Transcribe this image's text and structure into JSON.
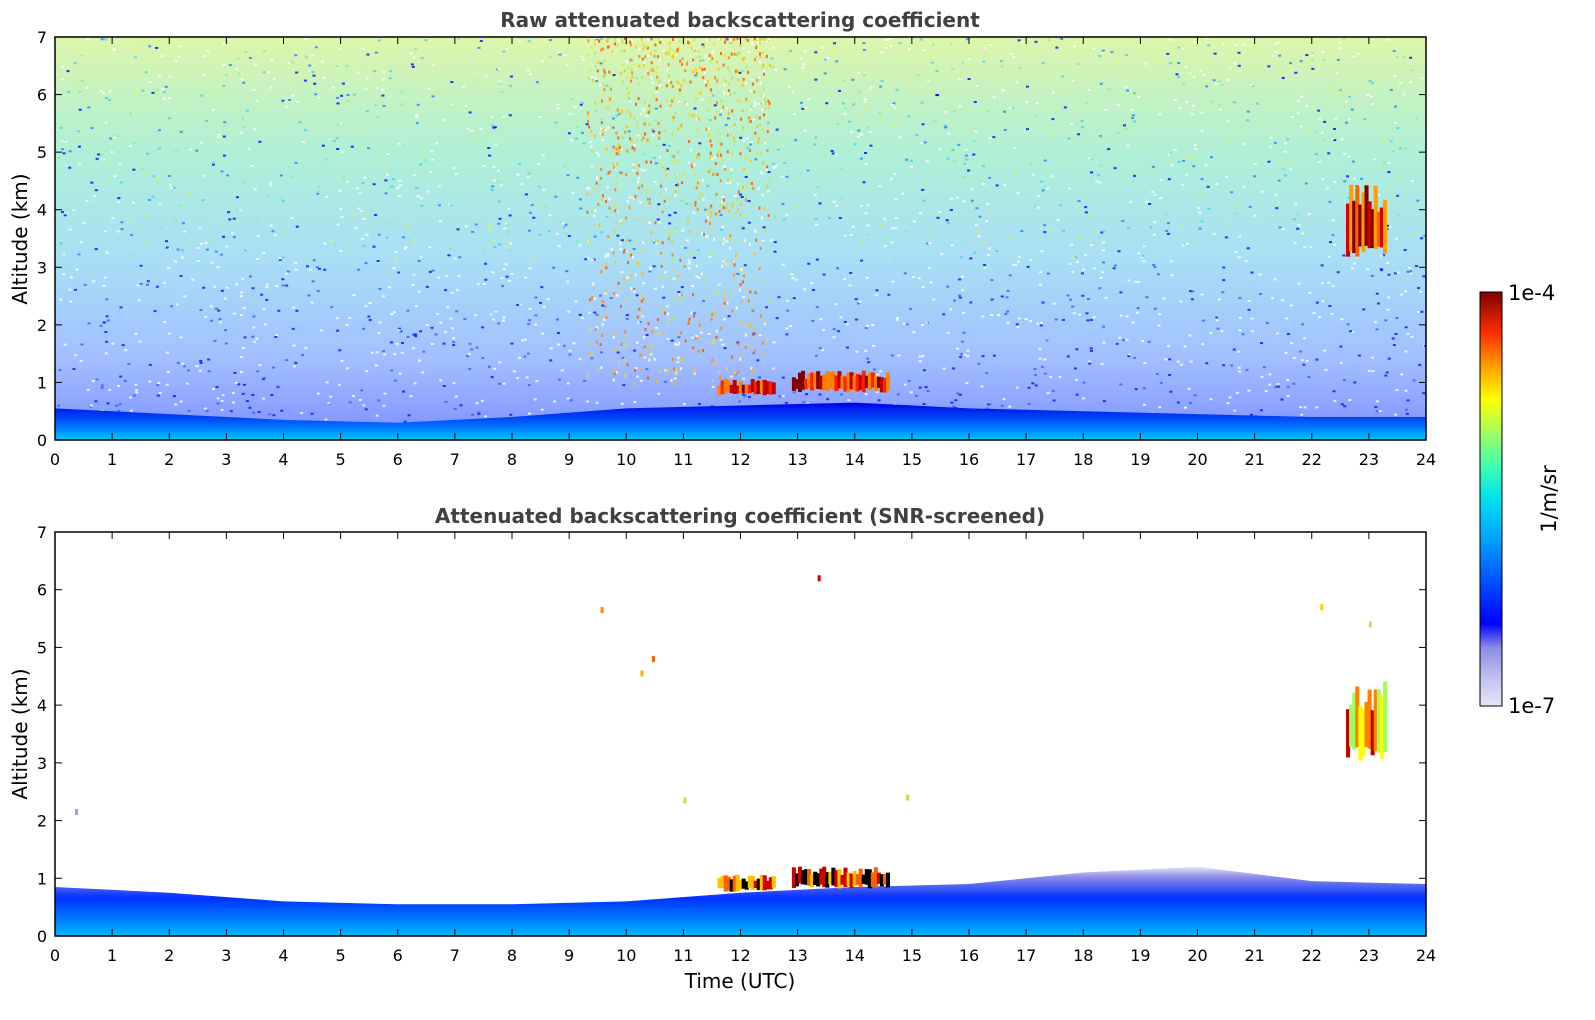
{
  "chart_data": [
    {
      "type": "heatmap",
      "title": "Raw attenuated backscattering coefficient",
      "ylabel": "Altitude (km)",
      "xlabel": "",
      "xlim": [
        0,
        24
      ],
      "ylim": [
        0,
        7
      ],
      "xticks": [
        "0",
        "1",
        "2",
        "3",
        "4",
        "5",
        "6",
        "7",
        "8",
        "9",
        "10",
        "11",
        "12",
        "13",
        "14",
        "15",
        "16",
        "17",
        "18",
        "19",
        "20",
        "21",
        "22",
        "23",
        "24"
      ],
      "yticks": [
        "0",
        "1",
        "2",
        "3",
        "4",
        "5",
        "6",
        "7"
      ],
      "features": [
        {
          "name": "boundary layer",
          "x": [
            0,
            24
          ],
          "top_km": [
            0.55,
            0.45,
            0.35,
            0.3,
            0.4,
            0.55,
            0.6,
            0.65,
            0.55,
            0.5,
            0.45,
            0.4,
            0.4
          ]
        },
        {
          "name": "low cloud",
          "x": [
            11.6,
            12.6
          ],
          "y": [
            0.75,
            1.1
          ],
          "level": "high"
        },
        {
          "name": "low cloud",
          "x": [
            12.9,
            14.6
          ],
          "y": [
            0.8,
            1.25
          ],
          "level": "high"
        },
        {
          "name": "elevated layer",
          "x": [
            22.6,
            23.3
          ],
          "y": [
            3.0,
            4.6
          ],
          "level": "high"
        },
        {
          "name": "enhanced signal",
          "x": [
            9.3,
            12.5
          ],
          "y": [
            1.0,
            7.0
          ],
          "level": "medium"
        }
      ]
    },
    {
      "type": "heatmap",
      "title": "Attenuated backscattering coefficient (SNR-screened)",
      "ylabel": "Altitude (km)",
      "xlabel": "Time (UTC)",
      "xlim": [
        0,
        24
      ],
      "ylim": [
        0,
        7
      ],
      "xticks": [
        "0",
        "1",
        "2",
        "3",
        "4",
        "5",
        "6",
        "7",
        "8",
        "9",
        "10",
        "11",
        "12",
        "13",
        "14",
        "15",
        "16",
        "17",
        "18",
        "19",
        "20",
        "21",
        "22",
        "23",
        "24"
      ],
      "yticks": [
        "0",
        "1",
        "2",
        "3",
        "4",
        "5",
        "6",
        "7"
      ],
      "features": [
        {
          "name": "boundary layer",
          "x": [
            0,
            24
          ],
          "top_km": [
            0.85,
            0.75,
            0.6,
            0.55,
            0.55,
            0.6,
            0.75,
            0.85,
            0.9,
            1.1,
            1.2,
            0.95,
            0.9
          ]
        },
        {
          "name": "low cloud",
          "x": [
            11.6,
            12.6
          ],
          "y": [
            0.75,
            1.1
          ],
          "level": "high"
        },
        {
          "name": "low cloud",
          "x": [
            12.9,
            14.6
          ],
          "y": [
            0.8,
            1.25
          ],
          "level": "high"
        },
        {
          "name": "elevated layer",
          "x": [
            22.6,
            23.3
          ],
          "y": [
            2.9,
            4.6
          ],
          "level": "high"
        }
      ]
    }
  ],
  "colorbar": {
    "label": "1/m/sr",
    "max_label": "1e-4",
    "min_label": "1e-7",
    "colormap": [
      "#e6e6f8",
      "#bfbfef",
      "#8c8ce8",
      "#0000ff",
      "#0040ff",
      "#0080ff",
      "#00c0ff",
      "#00e8e8",
      "#40ffb0",
      "#a0ff60",
      "#ffff00",
      "#ffc000",
      "#ff8000",
      "#ff3000",
      "#d00000",
      "#800000"
    ]
  }
}
